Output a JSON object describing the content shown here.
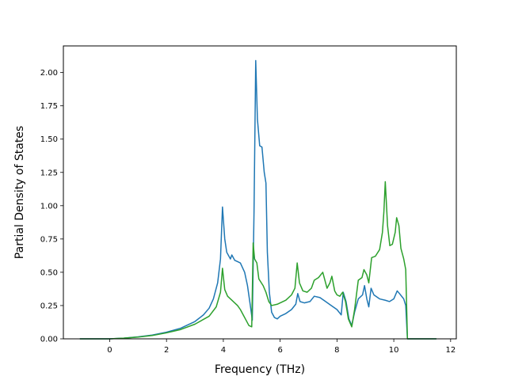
{
  "chart_data": {
    "type": "line",
    "xlabel": "Frequency (THz)",
    "ylabel": "Partial Density of States",
    "xlim": [
      -1.63,
      12.2
    ],
    "ylim": [
      0,
      2.2
    ],
    "x_ticks": [
      0,
      2,
      4,
      6,
      8,
      10,
      12
    ],
    "y_ticks": [
      0.0,
      0.25,
      0.5,
      0.75,
      1.0,
      1.25,
      1.5,
      1.75,
      2.0
    ],
    "x_tick_labels": [
      "0",
      "2",
      "4",
      "6",
      "8",
      "10",
      "12"
    ],
    "y_tick_labels": [
      "0.00",
      "0.25",
      "0.50",
      "0.75",
      "1.00",
      "1.25",
      "1.50",
      "1.75",
      "2.00"
    ],
    "grid": false,
    "series": [
      {
        "color": "#1f77b4",
        "points": [
          [
            -1.05,
            0
          ],
          [
            0,
            0
          ],
          [
            0.5,
            0.005
          ],
          [
            1.0,
            0.015
          ],
          [
            1.5,
            0.028
          ],
          [
            2.0,
            0.05
          ],
          [
            2.5,
            0.08
          ],
          [
            3.0,
            0.13
          ],
          [
            3.3,
            0.18
          ],
          [
            3.5,
            0.23
          ],
          [
            3.65,
            0.3
          ],
          [
            3.8,
            0.42
          ],
          [
            3.9,
            0.6
          ],
          [
            3.97,
            0.99
          ],
          [
            4.05,
            0.75
          ],
          [
            4.12,
            0.65
          ],
          [
            4.25,
            0.6
          ],
          [
            4.3,
            0.63
          ],
          [
            4.4,
            0.59
          ],
          [
            4.5,
            0.58
          ],
          [
            4.6,
            0.57
          ],
          [
            4.75,
            0.5
          ],
          [
            4.85,
            0.4
          ],
          [
            4.95,
            0.25
          ],
          [
            5.02,
            0.14
          ],
          [
            5.08,
            0.95
          ],
          [
            5.14,
            2.09
          ],
          [
            5.2,
            1.65
          ],
          [
            5.28,
            1.45
          ],
          [
            5.36,
            1.44
          ],
          [
            5.44,
            1.25
          ],
          [
            5.5,
            1.17
          ],
          [
            5.55,
            0.65
          ],
          [
            5.62,
            0.35
          ],
          [
            5.7,
            0.2
          ],
          [
            5.8,
            0.16
          ],
          [
            5.9,
            0.15
          ],
          [
            6.0,
            0.17
          ],
          [
            6.2,
            0.19
          ],
          [
            6.4,
            0.22
          ],
          [
            6.55,
            0.26
          ],
          [
            6.62,
            0.34
          ],
          [
            6.7,
            0.28
          ],
          [
            6.85,
            0.27
          ],
          [
            7.05,
            0.28
          ],
          [
            7.2,
            0.32
          ],
          [
            7.4,
            0.31
          ],
          [
            7.6,
            0.28
          ],
          [
            7.8,
            0.25
          ],
          [
            8.0,
            0.22
          ],
          [
            8.15,
            0.18
          ],
          [
            8.22,
            0.35
          ],
          [
            8.32,
            0.28
          ],
          [
            8.42,
            0.15
          ],
          [
            8.52,
            0.1
          ],
          [
            8.62,
            0.2
          ],
          [
            8.75,
            0.3
          ],
          [
            8.9,
            0.33
          ],
          [
            8.97,
            0.4
          ],
          [
            9.05,
            0.3
          ],
          [
            9.12,
            0.24
          ],
          [
            9.2,
            0.38
          ],
          [
            9.3,
            0.33
          ],
          [
            9.5,
            0.3
          ],
          [
            9.7,
            0.29
          ],
          [
            9.85,
            0.28
          ],
          [
            10.0,
            0.3
          ],
          [
            10.12,
            0.36
          ],
          [
            10.2,
            0.34
          ],
          [
            10.35,
            0.3
          ],
          [
            10.42,
            0.25
          ],
          [
            10.48,
            0.0
          ],
          [
            11.5,
            0.0
          ]
        ]
      },
      {
        "color": "#2ca02c",
        "points": [
          [
            -1.05,
            0
          ],
          [
            0,
            0
          ],
          [
            0.5,
            0.005
          ],
          [
            1.0,
            0.013
          ],
          [
            1.5,
            0.025
          ],
          [
            2.0,
            0.045
          ],
          [
            2.5,
            0.07
          ],
          [
            3.0,
            0.11
          ],
          [
            3.5,
            0.17
          ],
          [
            3.75,
            0.24
          ],
          [
            3.9,
            0.35
          ],
          [
            3.97,
            0.53
          ],
          [
            4.05,
            0.37
          ],
          [
            4.15,
            0.32
          ],
          [
            4.3,
            0.29
          ],
          [
            4.5,
            0.25
          ],
          [
            4.6,
            0.22
          ],
          [
            4.7,
            0.18
          ],
          [
            4.8,
            0.14
          ],
          [
            4.9,
            0.1
          ],
          [
            5.0,
            0.09
          ],
          [
            5.05,
            0.72
          ],
          [
            5.1,
            0.6
          ],
          [
            5.18,
            0.57
          ],
          [
            5.25,
            0.45
          ],
          [
            5.4,
            0.4
          ],
          [
            5.5,
            0.35
          ],
          [
            5.6,
            0.28
          ],
          [
            5.7,
            0.25
          ],
          [
            5.9,
            0.26
          ],
          [
            6.2,
            0.29
          ],
          [
            6.4,
            0.33
          ],
          [
            6.52,
            0.38
          ],
          [
            6.6,
            0.57
          ],
          [
            6.68,
            0.42
          ],
          [
            6.8,
            0.36
          ],
          [
            6.95,
            0.35
          ],
          [
            7.1,
            0.38
          ],
          [
            7.2,
            0.44
          ],
          [
            7.35,
            0.46
          ],
          [
            7.5,
            0.5
          ],
          [
            7.65,
            0.38
          ],
          [
            7.75,
            0.42
          ],
          [
            7.82,
            0.47
          ],
          [
            7.92,
            0.36
          ],
          [
            8.0,
            0.33
          ],
          [
            8.1,
            0.32
          ],
          [
            8.2,
            0.35
          ],
          [
            8.3,
            0.28
          ],
          [
            8.4,
            0.15
          ],
          [
            8.52,
            0.09
          ],
          [
            8.62,
            0.22
          ],
          [
            8.75,
            0.44
          ],
          [
            8.88,
            0.46
          ],
          [
            8.95,
            0.52
          ],
          [
            9.05,
            0.48
          ],
          [
            9.12,
            0.42
          ],
          [
            9.22,
            0.61
          ],
          [
            9.35,
            0.62
          ],
          [
            9.5,
            0.67
          ],
          [
            9.6,
            0.8
          ],
          [
            9.65,
            0.95
          ],
          [
            9.7,
            1.18
          ],
          [
            9.78,
            0.85
          ],
          [
            9.86,
            0.7
          ],
          [
            9.95,
            0.71
          ],
          [
            10.05,
            0.8
          ],
          [
            10.1,
            0.91
          ],
          [
            10.18,
            0.85
          ],
          [
            10.25,
            0.68
          ],
          [
            10.35,
            0.6
          ],
          [
            10.42,
            0.52
          ],
          [
            10.48,
            0.0
          ],
          [
            11.5,
            0.0
          ]
        ]
      }
    ]
  }
}
